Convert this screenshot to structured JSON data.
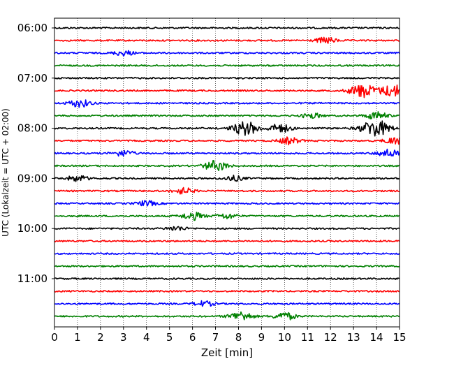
{
  "chart_data": {
    "type": "line",
    "title": "",
    "xlabel": "Zeit  [min]",
    "ylabel": "UTC (Lokalzeit = UTC + 02:00)",
    "xlim": [
      0,
      15
    ],
    "x_ticks": [
      "0",
      "1",
      "2",
      "3",
      "4",
      "5",
      "6",
      "7",
      "8",
      "9",
      "10",
      "11",
      "12",
      "13",
      "14",
      "15"
    ],
    "y_tick_labels": [
      "06:00",
      "07:00",
      "08:00",
      "09:00",
      "10:00",
      "11:00"
    ],
    "grid": "vertical-dotted",
    "trace_interval_minutes": 15,
    "trace_colors": [
      "#000000",
      "#ff0000",
      "#0000ff",
      "#008000"
    ],
    "series": [
      {
        "start": "06:00",
        "events": []
      },
      {
        "start": "06:15",
        "events": [
          {
            "x": 11.8,
            "amp": 0.35
          }
        ]
      },
      {
        "start": "06:30",
        "events": [
          {
            "x": 3.0,
            "amp": 0.3
          }
        ]
      },
      {
        "start": "06:45",
        "events": []
      },
      {
        "start": "07:00",
        "events": []
      },
      {
        "start": "07:15",
        "events": [
          {
            "x": 13.4,
            "amp": 0.8
          },
          {
            "x": 14.7,
            "amp": 0.7
          }
        ]
      },
      {
        "start": "07:30",
        "events": [
          {
            "x": 1.1,
            "amp": 0.45
          }
        ]
      },
      {
        "start": "07:45",
        "events": [
          {
            "x": 11.2,
            "amp": 0.3
          },
          {
            "x": 14.0,
            "amp": 0.45
          }
        ]
      },
      {
        "start": "08:00",
        "events": [
          {
            "x": 8.3,
            "amp": 0.8
          },
          {
            "x": 9.8,
            "amp": 0.5
          },
          {
            "x": 13.95,
            "amp": 1.0
          }
        ]
      },
      {
        "start": "08:15",
        "events": [
          {
            "x": 10.2,
            "amp": 0.4
          },
          {
            "x": 14.8,
            "amp": 0.4
          }
        ]
      },
      {
        "start": "08:30",
        "events": [
          {
            "x": 3.0,
            "amp": 0.35
          },
          {
            "x": 14.5,
            "amp": 0.45
          }
        ]
      },
      {
        "start": "08:45",
        "events": [
          {
            "x": 7.0,
            "amp": 0.6
          }
        ]
      },
      {
        "start": "09:00",
        "events": [
          {
            "x": 1.0,
            "amp": 0.35
          },
          {
            "x": 7.8,
            "amp": 0.3
          }
        ]
      },
      {
        "start": "09:15",
        "events": [
          {
            "x": 5.6,
            "amp": 0.35
          }
        ]
      },
      {
        "start": "09:30",
        "events": [
          {
            "x": 4.0,
            "amp": 0.3
          }
        ]
      },
      {
        "start": "09:45",
        "events": [
          {
            "x": 6.0,
            "amp": 0.45
          },
          {
            "x": 7.5,
            "amp": 0.3
          }
        ]
      },
      {
        "start": "10:00",
        "events": [
          {
            "x": 5.3,
            "amp": 0.25
          }
        ]
      },
      {
        "start": "10:15",
        "events": []
      },
      {
        "start": "10:30",
        "events": []
      },
      {
        "start": "10:45",
        "events": []
      },
      {
        "start": "11:00",
        "events": []
      },
      {
        "start": "11:15",
        "events": []
      },
      {
        "start": "11:30",
        "events": [
          {
            "x": 6.5,
            "amp": 0.3
          }
        ]
      },
      {
        "start": "11:45",
        "events": [
          {
            "x": 8.1,
            "amp": 0.55
          },
          {
            "x": 10.0,
            "amp": 0.45
          }
        ]
      }
    ]
  }
}
